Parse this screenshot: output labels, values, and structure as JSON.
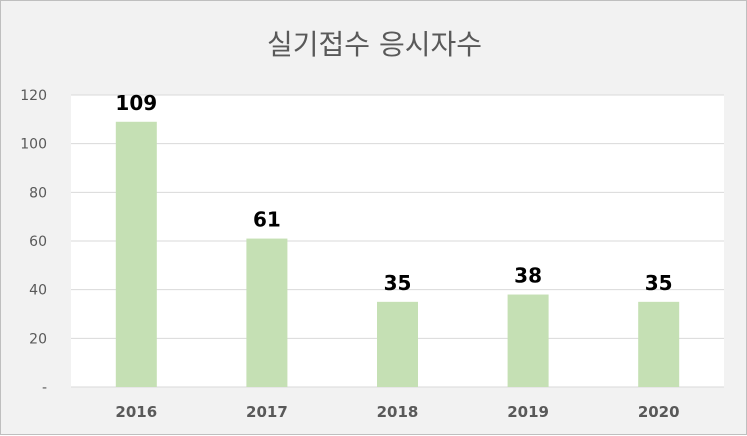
{
  "chart_data": {
    "type": "bar",
    "title": "실기접수 응시자수",
    "categories": [
      "2016",
      "2017",
      "2018",
      "2019",
      "2020"
    ],
    "values": [
      109,
      61,
      35,
      38,
      35
    ],
    "ylim": [
      0,
      120
    ],
    "yticks": [
      0,
      20,
      40,
      60,
      80,
      100,
      120
    ],
    "ytick_labels": [
      "-",
      "20",
      "40",
      "60",
      "80",
      "100",
      "120"
    ],
    "xlabel": "",
    "ylabel": "",
    "grid": true,
    "legend": "none",
    "colors": {
      "bar": "#c5e0b4",
      "plot_background": "#ffffff",
      "chart_background": "#f2f2f2",
      "gridline": "#d9d9d9",
      "data_label": "#000000",
      "tick_label": "#595959",
      "title": "#595959"
    }
  }
}
